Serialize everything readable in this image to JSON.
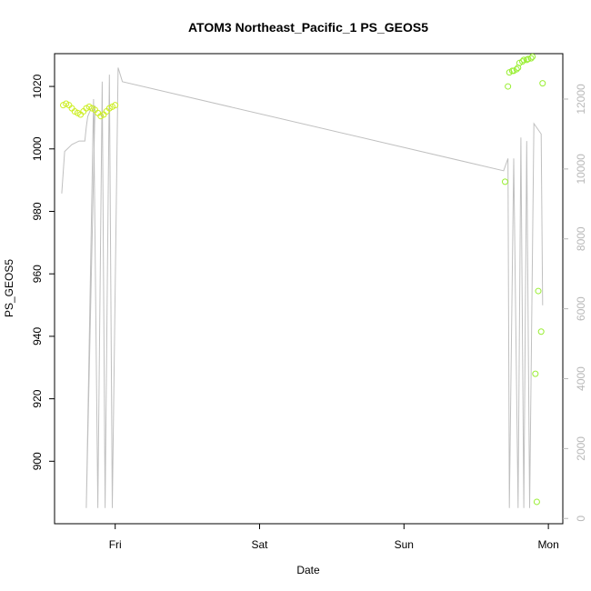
{
  "chart_data": {
    "type": "scatter",
    "title": "ATOM3 Northeast_Pacific_1 PS_GEOS5",
    "xlabel": "Date",
    "ylabel": "PS_GEOS5",
    "x_ticks": [
      "Fri",
      "Sat",
      "Sun",
      "Mon"
    ],
    "y_ticks": [
      900,
      920,
      940,
      960,
      980,
      1000,
      1020
    ],
    "y2_ticks": [
      0,
      2000,
      4000,
      6000,
      8000,
      10000,
      12000
    ],
    "xlim_days": [
      -0.42,
      3.1
    ],
    "ylim": [
      880,
      1030.5
    ],
    "y2lim": [
      -150,
      13300
    ],
    "grid": false,
    "colors": {
      "line": "#c0c0c0",
      "axis": "#000000",
      "right_axis": "#b8b8b8"
    },
    "points": [
      {
        "x": -0.36,
        "y": 1014,
        "color": "#ccee22"
      },
      {
        "x": -0.34,
        "y": 1014.5,
        "color": "#ccee22"
      },
      {
        "x": -0.32,
        "y": 1014,
        "color": "#ccee22"
      },
      {
        "x": -0.3,
        "y": 1013,
        "color": "#ccee22"
      },
      {
        "x": -0.28,
        "y": 1012,
        "color": "#ccee22"
      },
      {
        "x": -0.26,
        "y": 1011.5,
        "color": "#ccee22"
      },
      {
        "x": -0.24,
        "y": 1011,
        "color": "#ccee22"
      },
      {
        "x": -0.22,
        "y": 1012,
        "color": "#ccee22"
      },
      {
        "x": -0.2,
        "y": 1013,
        "color": "#ccee22"
      },
      {
        "x": -0.18,
        "y": 1013.5,
        "color": "#ccee22"
      },
      {
        "x": -0.16,
        "y": 1013,
        "color": "#ccee22"
      },
      {
        "x": -0.14,
        "y": 1012.5,
        "color": "#ccee22"
      },
      {
        "x": -0.12,
        "y": 1011.5,
        "color": "#ccee22"
      },
      {
        "x": -0.1,
        "y": 1010.5,
        "color": "#ccee22"
      },
      {
        "x": -0.08,
        "y": 1011,
        "color": "#ccee22"
      },
      {
        "x": -0.06,
        "y": 1012,
        "color": "#ccee22"
      },
      {
        "x": -0.04,
        "y": 1013,
        "color": "#ccee22"
      },
      {
        "x": -0.02,
        "y": 1013.5,
        "color": "#ccee22"
      },
      {
        "x": 0.0,
        "y": 1014,
        "color": "#ccee22"
      },
      {
        "x": 2.7,
        "y": 989.5,
        "color": "#99ee33"
      },
      {
        "x": 2.72,
        "y": 1020,
        "color": "#99ee33"
      },
      {
        "x": 2.73,
        "y": 1024.5,
        "color": "#99ee33"
      },
      {
        "x": 2.75,
        "y": 1025,
        "color": "#99ee33"
      },
      {
        "x": 2.76,
        "y": 1025,
        "color": "#99ee33"
      },
      {
        "x": 2.78,
        "y": 1025.5,
        "color": "#99ee33"
      },
      {
        "x": 2.79,
        "y": 1026,
        "color": "#99ee33"
      },
      {
        "x": 2.8,
        "y": 1027.5,
        "color": "#99ee33"
      },
      {
        "x": 2.82,
        "y": 1028,
        "color": "#99ee33"
      },
      {
        "x": 2.83,
        "y": 1028.5,
        "color": "#99ee33"
      },
      {
        "x": 2.85,
        "y": 1028.5,
        "color": "#99ee33"
      },
      {
        "x": 2.86,
        "y": 1028.8,
        "color": "#99ee33"
      },
      {
        "x": 2.88,
        "y": 1029,
        "color": "#99ee33"
      },
      {
        "x": 2.89,
        "y": 1029.5,
        "color": "#99ee33"
      },
      {
        "x": 2.91,
        "y": 928,
        "color": "#99ee33"
      },
      {
        "x": 2.92,
        "y": 887,
        "color": "#99ee33"
      },
      {
        "x": 2.93,
        "y": 954.5,
        "color": "#99ee33"
      },
      {
        "x": 2.95,
        "y": 941.5,
        "color": "#99ee33"
      },
      {
        "x": 2.96,
        "y": 1021,
        "color": "#99ee33"
      }
    ],
    "line_series": [
      {
        "x": -0.37,
        "y": 9300
      },
      {
        "x": -0.35,
        "y": 10500
      },
      {
        "x": -0.3,
        "y": 10700
      },
      {
        "x": -0.25,
        "y": 10800
      },
      {
        "x": -0.21,
        "y": 10800
      },
      {
        "x": -0.2,
        "y": 11200
      },
      {
        "x": -0.19,
        "y": 11500
      },
      {
        "x": -0.18,
        "y": 11600
      },
      {
        "x": -0.16,
        "y": 11800
      },
      {
        "x": -0.14,
        "y": 11800
      },
      {
        "x": -0.2,
        "y": 300
      },
      {
        "x": -0.15,
        "y": 12000
      },
      {
        "x": -0.12,
        "y": 300
      },
      {
        "x": -0.09,
        "y": 12500
      },
      {
        "x": -0.07,
        "y": 300
      },
      {
        "x": -0.04,
        "y": 12700
      },
      {
        "x": -0.02,
        "y": 300
      },
      {
        "x": 0.02,
        "y": 12900
      },
      {
        "x": 0.05,
        "y": 12500
      },
      {
        "x": 2.69,
        "y": 9950
      },
      {
        "x": 2.72,
        "y": 10300
      },
      {
        "x": 2.73,
        "y": 300
      },
      {
        "x": 2.76,
        "y": 10300
      },
      {
        "x": 2.79,
        "y": 300
      },
      {
        "x": 2.81,
        "y": 10900
      },
      {
        "x": 2.83,
        "y": 300
      },
      {
        "x": 2.85,
        "y": 10800
      },
      {
        "x": 2.87,
        "y": 300
      },
      {
        "x": 2.9,
        "y": 11300
      },
      {
        "x": 2.95,
        "y": 11000
      },
      {
        "x": 2.96,
        "y": 6100
      }
    ]
  }
}
